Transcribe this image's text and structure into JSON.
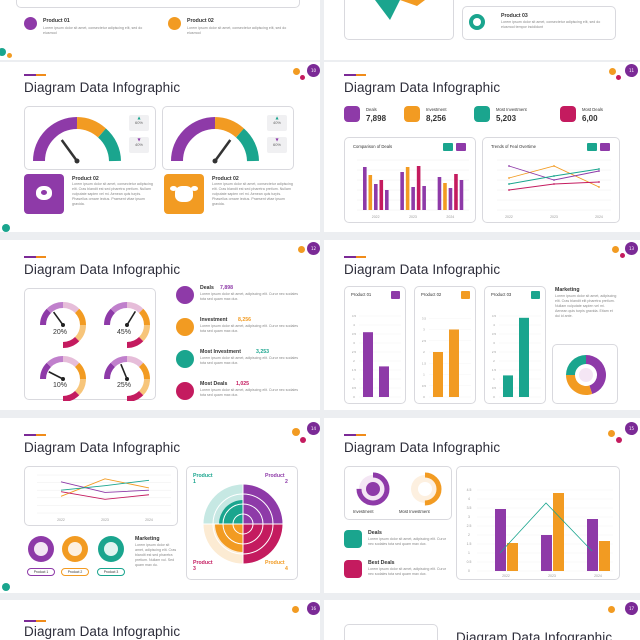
{
  "colors": {
    "purple": "#8e3aa8",
    "orange": "#f29b22",
    "green": "#1aa58e",
    "crimson": "#c41b5f",
    "tint": "#f4e6f4"
  },
  "partial_top_left": {
    "product01": {
      "title": "Product 01",
      "text": "Lorem ipsum dolor sit amet, consectetur adipiscing elit, sed do eiusmod"
    },
    "product02": {
      "title": "Product 02",
      "text": "Lorem ipsum dolor sit amet, consectetur adipiscing elit, sed do eiusmod"
    }
  },
  "partial_top_right": {
    "product03": {
      "title": "Product 03",
      "text": "Lorem ipsum dolor sit amet, consectetur adipiscing elit, sed do eiusmod tempor incididunt"
    }
  },
  "slide_gauges": {
    "page": "10",
    "title": "Diagram Data Infographic",
    "gauge1": {
      "up": "60%",
      "down": "40%",
      "needle": 0.3
    },
    "gauge2": {
      "up": "40%",
      "down": "60%",
      "needle": 0.7
    },
    "product02a": {
      "title": "Product 02",
      "text": "Lorem ipsum dolor sit amet, consectetur adipiscing elit. Cras blandit est sed pharetra pretium. Nullam vulputate sapien vel mi. Aenean quis turpis. Phasellus ornare lectus. Praesent vitae ipsum gravida."
    },
    "product02b": {
      "title": "Product 02",
      "text": "Lorem ipsum dolor sit amet, consectetur adipiscing elit. Cras blandit est sed pharetra pretium. Nullam vulputate sapien vel mi. Aenean quis turpis. Phasellus ornare lectus. Praesent vitae ipsum gravida."
    }
  },
  "slide_deals": {
    "page": "11",
    "title": "Diagram Data Infographic",
    "kpis": [
      {
        "label": "Deals",
        "value": "7,898"
      },
      {
        "label": "Investment",
        "value": "8,256"
      },
      {
        "label": "Most Investment",
        "value": "5,203"
      },
      {
        "label": "Most Deals",
        "value": "6,00"
      }
    ],
    "comparison_title": "Comparison of Deals",
    "trends_title": "Trends of Feal Overtime"
  },
  "slide_percent_gauges": {
    "page": "12",
    "title": "Diagram Data Infographic",
    "gauges": [
      {
        "value": "20%",
        "level": 0.2
      },
      {
        "value": "45%",
        "level": 0.45
      },
      {
        "value": "10%",
        "level": 0.1
      },
      {
        "value": "25%",
        "level": 0.25
      }
    ],
    "stats": [
      {
        "label": "Deals",
        "value": "7,898",
        "text": "Lorem ipsum dolor sit amet, adipiscing elit. Curur nec sodales tota sed quam max dux."
      },
      {
        "label": "Investment",
        "value": "8,256",
        "text": "Lorem ipsum dolor sit amet, adipiscing elit. Curur nec sodales tota sed quam max dux."
      },
      {
        "label": "Most Investment",
        "value": "3,253",
        "text": "Lorem ipsum dolor sit amet, adipiscing elit. Curur nec sodales tota sed quam max dux."
      },
      {
        "label": "Most Deals",
        "value": "1,025",
        "text": "Lorem ipsum dolor sit amet, adipiscing elit. Curur nec sodales tota sed quam max dux."
      }
    ]
  },
  "slide_products": {
    "page": "13",
    "title": "Diagram Data Infographic",
    "products": [
      {
        "title": "Product 01"
      },
      {
        "title": "Product 02"
      },
      {
        "title": "Product 03"
      }
    ],
    "marketing": {
      "title": "Marketing",
      "text": "Lorem ipsum dolor sit amet, adipiscing elit. Cras blandit elit pharetra pretium. Nullam vulputate sapien vel mi. Aenean quis turpis gravida. Etiam et dui id ante."
    }
  },
  "slide_lines_radial": {
    "page": "14",
    "title": "Diagram Data Infographic",
    "years": [
      "2022",
      "2023",
      "2024"
    ],
    "marketing": {
      "title": "Marketing",
      "text": "Lorem ipsum dolor sit amet, adipiscing elit. Cras blandit est sed pharetra pretium. Nullam vul. Sed quam max du."
    },
    "pills": [
      "Product 1",
      "Product 2",
      "Product 3"
    ],
    "quadrants": [
      {
        "title": "Product",
        "num": "1"
      },
      {
        "title": "Product",
        "num": "2"
      },
      {
        "title": "Product",
        "num": "3"
      },
      {
        "title": "Product",
        "num": "4"
      }
    ]
  },
  "slide_investment": {
    "page": "15",
    "title": "Diagram Data Infographic",
    "donut_labels": [
      "Investment",
      "Most Investment"
    ],
    "items": [
      {
        "title": "Deals",
        "text": "Lorem ipsum dolor sit amet, adipiscing elit. Curur nec sodales tota sed quam max dux."
      },
      {
        "title": "Best Deals",
        "text": "Lorem ipsum dolor sit amet, adipiscing elit. Curur nec sodales tota sed quam max dux."
      }
    ],
    "years": [
      "2022",
      "2023",
      "2024"
    ]
  },
  "bottom_left": {
    "page": "16",
    "title": "Diagram Data Infographic"
  },
  "bottom_right": {
    "page": "17",
    "title": "Diagram Data Infographic"
  },
  "chart_data": [
    {
      "type": "bar",
      "title": "Comparison of Deals",
      "categories": [
        "2022",
        "2023",
        "2024"
      ],
      "series": [
        {
          "values": [
            4.3,
            3.8,
            3.3
          ]
        },
        {
          "values": [
            3.5,
            4.3,
            2.7
          ]
        },
        {
          "values": [
            2.6,
            2.3,
            2.2
          ]
        },
        {
          "values": [
            3.0,
            4.4,
            3.6
          ]
        },
        {
          "values": [
            2.0,
            2.4,
            3.0
          ]
        }
      ],
      "ylim": [
        0,
        5
      ]
    },
    {
      "type": "line",
      "title": "Trends of Feal Overtime",
      "categories": [
        "2022",
        "2023",
        "2024"
      ],
      "series": [
        {
          "values": [
            3.2,
            4.4,
            2.3
          ]
        },
        {
          "values": [
            4.4,
            3.0,
            3.9
          ]
        },
        {
          "values": [
            2.6,
            3.4,
            4.1
          ]
        },
        {
          "values": [
            2.0,
            2.6,
            2.8
          ]
        }
      ],
      "ylim": [
        0,
        5
      ]
    },
    {
      "type": "bar",
      "title": "Product 01",
      "categories": [
        "A",
        "B"
      ],
      "values": [
        3.6,
        1.7
      ],
      "ylim": [
        0,
        5
      ],
      "yticks": [
        "0",
        "0.5",
        "1",
        "1.5",
        "2",
        "2.5",
        "3",
        "3.5",
        "4",
        "4.5"
      ]
    },
    {
      "type": "bar",
      "title": "Product 02",
      "categories": [
        "A",
        "B"
      ],
      "values": [
        2.0,
        3.0
      ],
      "ylim": [
        0,
        4
      ],
      "yticks": [
        "0",
        "0.5",
        "1",
        "1.5",
        "2",
        "2.5",
        "3",
        "3.5"
      ]
    },
    {
      "type": "bar",
      "title": "Product 03",
      "categories": [
        "A",
        "B"
      ],
      "values": [
        1.2,
        4.4
      ],
      "ylim": [
        0,
        5
      ],
      "yticks": [
        "0",
        "0.5",
        "1",
        "1.5",
        "2",
        "2.5",
        "3",
        "3.5",
        "4",
        "4.5"
      ]
    },
    {
      "type": "pie",
      "title": "",
      "values": [
        45,
        30,
        25
      ]
    },
    {
      "type": "line",
      "title": "",
      "categories": [
        "2022",
        "2023",
        "2024"
      ],
      "series": [
        {
          "values": [
            2.2,
            4.5,
            3.3
          ]
        },
        {
          "values": [
            4.1,
            2.7,
            3.0
          ]
        },
        {
          "values": [
            3.0,
            3.6,
            4.3
          ]
        },
        {
          "values": [
            2.8,
            1.8,
            2.4
          ]
        }
      ],
      "ylim": [
        0,
        5
      ]
    },
    {
      "type": "bar",
      "title": "",
      "categories": [
        "2022",
        "2023",
        "2024"
      ],
      "series": [
        {
          "values": [
            3.1,
            1.8,
            2.6
          ]
        },
        {
          "values": [
            1.4,
            3.9,
            1.5
          ]
        }
      ],
      "ylim": [
        0,
        4.5
      ],
      "yticks": [
        "0",
        "0.5",
        "1",
        "1.5",
        "2",
        "2.5",
        "3",
        "3.5",
        "4",
        "4.5"
      ]
    }
  ]
}
